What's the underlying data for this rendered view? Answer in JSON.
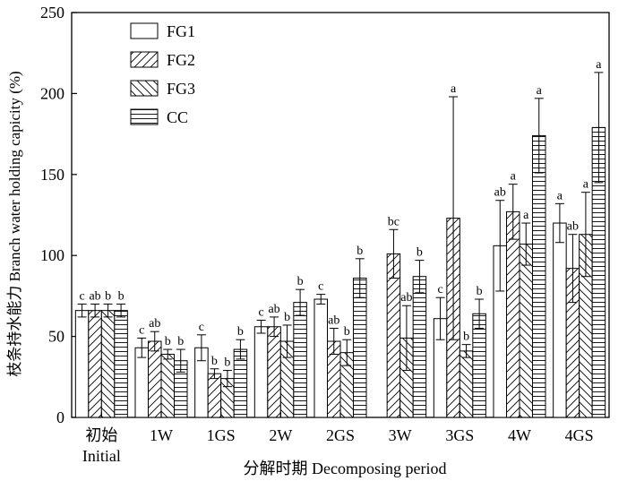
{
  "chart_data": {
    "type": "bar",
    "title": "",
    "xlabel": "分解时期 Decomposing period",
    "ylabel": "枝条持水能力 Branch water holding capicity (%)",
    "ylim": [
      0,
      250
    ],
    "yticks": [
      0,
      50,
      100,
      150,
      200,
      250
    ],
    "categories": [
      "初始",
      "1W",
      "1GS",
      "2W",
      "2GS",
      "3W",
      "3GS",
      "4W",
      "4GS"
    ],
    "category_sublabels": [
      "Initial",
      "",
      "",
      "",
      "",
      "",
      "",
      "",
      ""
    ],
    "legend_position": "top-left",
    "grid": false,
    "series": [
      {
        "name": "FG1",
        "pattern": "plain",
        "values": [
          66,
          43,
          43,
          56,
          73,
          0,
          61,
          106,
          120
        ],
        "errors": [
          4,
          6,
          8,
          4,
          3,
          0,
          13,
          28,
          12
        ],
        "letters": [
          "c",
          "c",
          "c",
          "c",
          "c",
          "",
          "c",
          "ab",
          "a"
        ]
      },
      {
        "name": "FG2",
        "pattern": "forward-diagonal",
        "values": [
          66,
          47,
          27,
          56,
          47,
          101,
          123,
          127,
          92
        ],
        "errors": [
          4,
          6,
          3,
          6,
          8,
          15,
          75,
          17,
          21
        ],
        "letters": [
          "ab",
          "ab",
          "b",
          "ab",
          "ab",
          "bc",
          "a",
          "a",
          "ab"
        ]
      },
      {
        "name": "FG3",
        "pattern": "back-diagonal",
        "values": [
          66,
          39,
          24,
          47,
          40,
          49,
          41,
          107,
          113
        ],
        "errors": [
          4,
          3,
          5,
          10,
          8,
          20,
          4,
          13,
          26
        ],
        "letters": [
          "b",
          "b",
          "b",
          "b",
          "b",
          "ab",
          "b",
          "a",
          "a"
        ]
      },
      {
        "name": "CC",
        "pattern": "horizontal-lines",
        "values": [
          66,
          35,
          42,
          71,
          86,
          87,
          64,
          174,
          179
        ],
        "errors": [
          4,
          7,
          6,
          8,
          12,
          10,
          9,
          23,
          34
        ],
        "letters": [
          "b",
          "b",
          "b",
          "b",
          "b",
          "b",
          "b",
          "a",
          "a"
        ]
      }
    ]
  }
}
